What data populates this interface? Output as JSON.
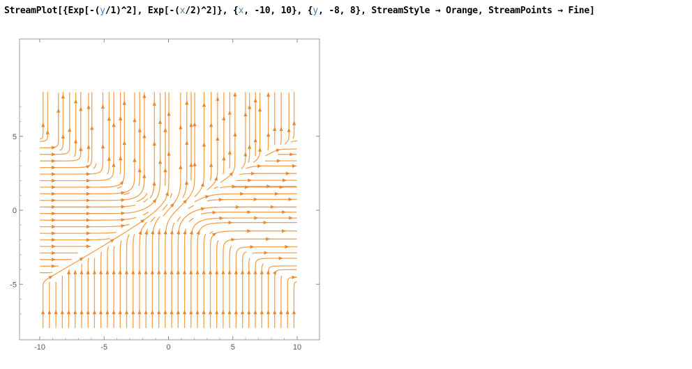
{
  "code": {
    "prefix": "StreamPlot[{Exp[-(",
    "var1": "y",
    "mid1": "/1)^2], Exp[-(",
    "var2": "x",
    "mid2": "/2)^2]}, {",
    "var3": "x",
    "mid3": ", -10, 10}, {",
    "var4": "y",
    "suffix": ", -8, 8}, StreamStyle → Orange, StreamPoints → Fine]"
  },
  "chart_data": {
    "type": "streamplot",
    "field": {
      "vx": "exp(-(y/1)^2)",
      "vy": "exp(-(x/2)^2)"
    },
    "xlim": [
      -10,
      10
    ],
    "ylim": [
      -8,
      8
    ],
    "x_ticks": [
      -10,
      -5,
      0,
      5,
      10
    ],
    "y_ticks": [
      -5,
      0,
      5
    ],
    "x_tick_labels": [
      "-10",
      "-5",
      "0",
      "5",
      "10"
    ],
    "y_tick_labels": [
      "-5",
      "0",
      "5"
    ],
    "stream_color": "#f5a04a",
    "arrow_color": "#e8892e",
    "frame_color": "#999999",
    "grid": false
  }
}
